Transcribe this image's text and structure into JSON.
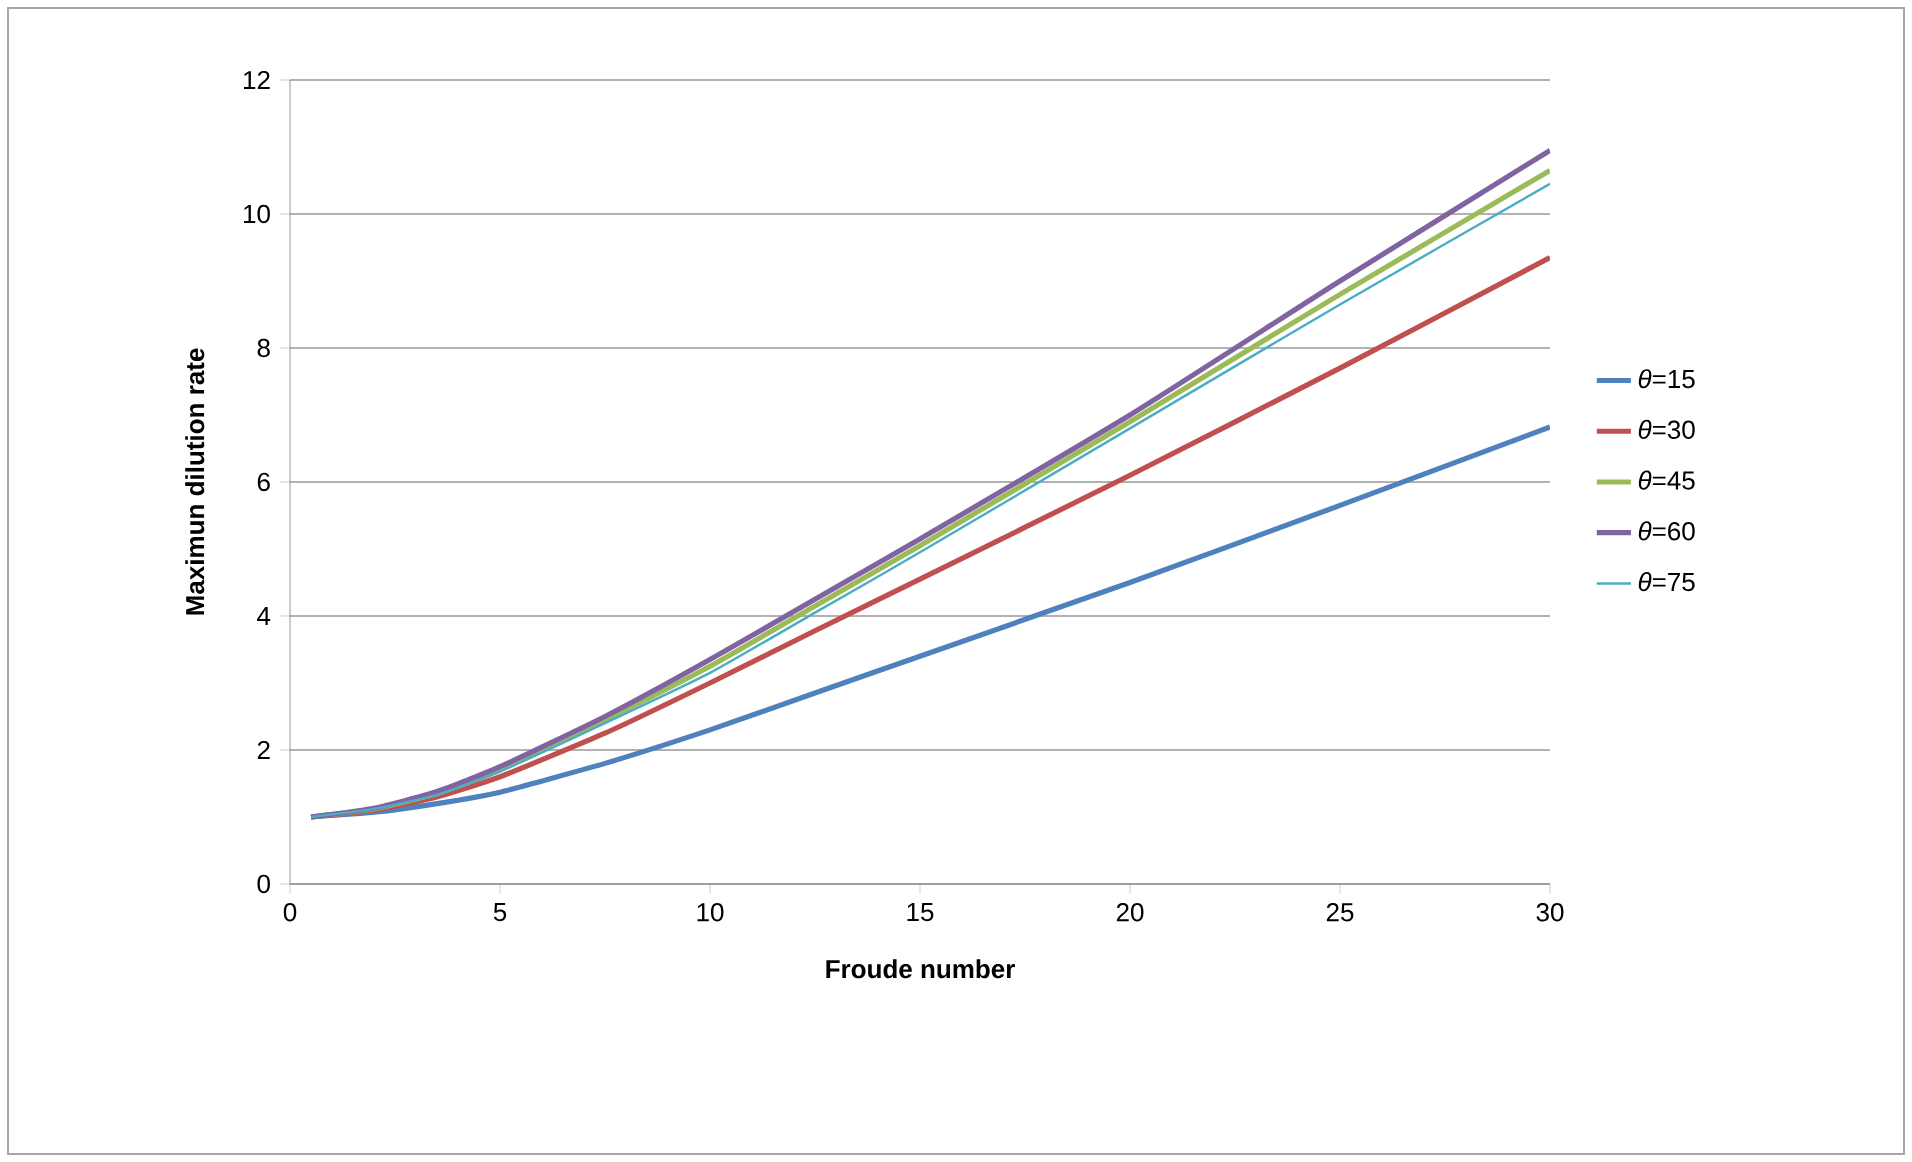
{
  "chart_data": {
    "type": "line",
    "xlabel": "Froude number",
    "ylabel": "Maximun dilution rate",
    "x": [
      0.5,
      2,
      3.5,
      5,
      7.5,
      10,
      12.5,
      15,
      20,
      25,
      30
    ],
    "series": [
      {
        "name": "*θ*=15",
        "color": "#4f81bd",
        "values": [
          1,
          1.07,
          1.2,
          1.37,
          1.8,
          2.3,
          2.85,
          3.4,
          4.5,
          5.65,
          6.82
        ]
      },
      {
        "name": "*θ*=30",
        "color": "#c0504d",
        "values": [
          1,
          1.1,
          1.3,
          1.6,
          2.25,
          3.0,
          3.78,
          4.55,
          6.1,
          7.7,
          9.35
        ]
      },
      {
        "name": "*θ*=45",
        "color": "#9bbb59",
        "values": [
          1,
          1.12,
          1.35,
          1.7,
          2.45,
          3.25,
          4.15,
          5.05,
          6.9,
          8.8,
          10.65
        ]
      },
      {
        "name": "*θ*=60",
        "color": "#8064a2",
        "values": [
          1,
          1.13,
          1.38,
          1.75,
          2.5,
          3.35,
          4.25,
          5.15,
          7.0,
          9.0,
          10.95
        ]
      },
      {
        "name": "*θ*=75",
        "color": "#4bacc6",
        "values": [
          1,
          1.12,
          1.33,
          1.68,
          2.4,
          3.15,
          4.05,
          4.95,
          6.8,
          8.65,
          10.45
        ]
      }
    ],
    "xlim": [
      0,
      30
    ],
    "xticks": [
      0,
      5,
      10,
      15,
      20,
      25,
      30
    ],
    "ylim": [
      0,
      12
    ],
    "yticks": [
      0,
      2,
      4,
      6,
      8,
      10,
      12
    ],
    "grid": "y",
    "legend": "right",
    "marker": "none",
    "line_style": "solid"
  }
}
